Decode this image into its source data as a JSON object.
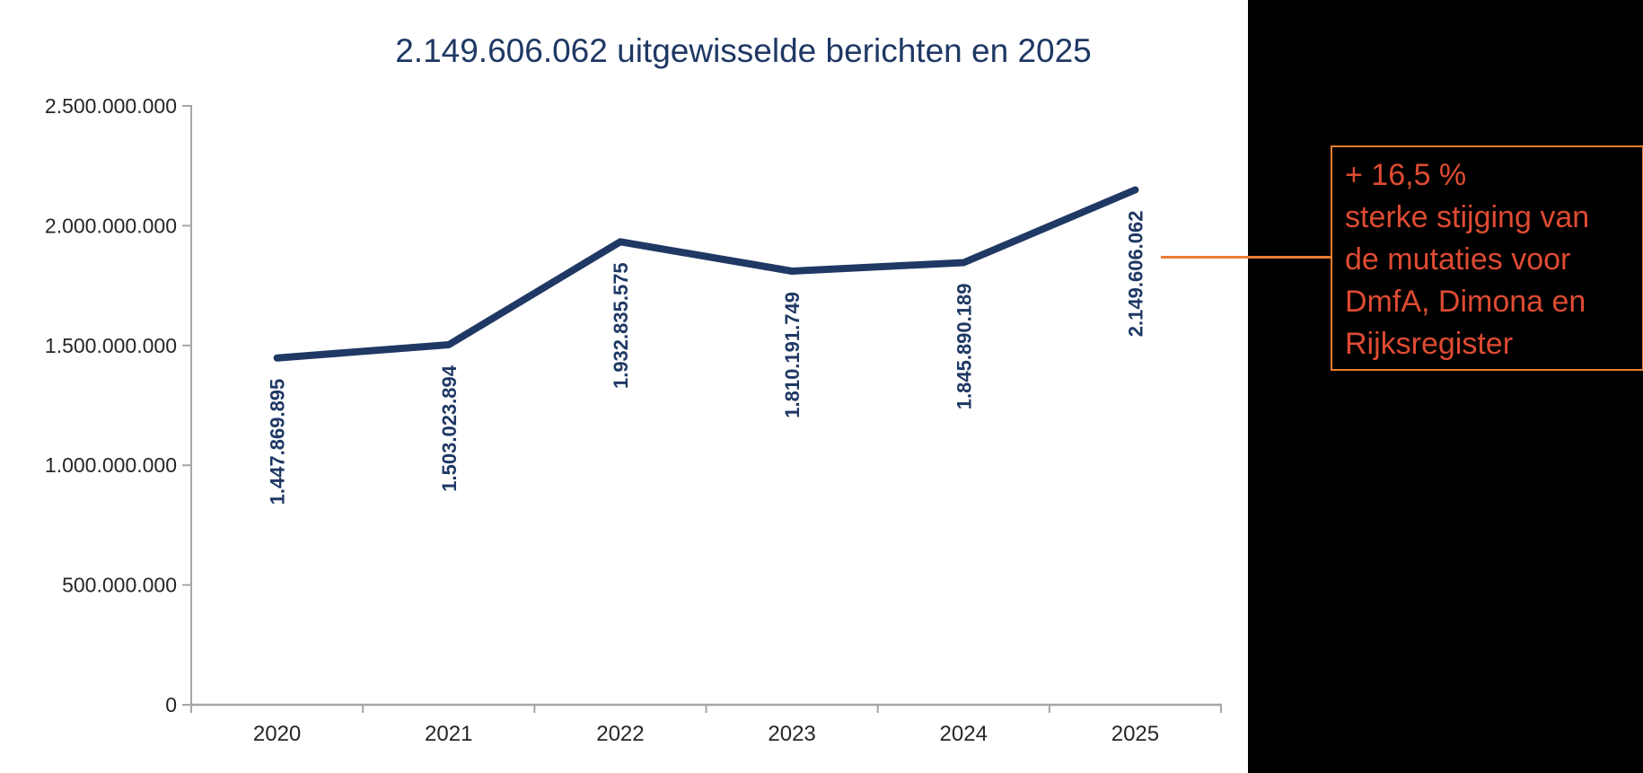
{
  "chart_data": {
    "type": "line",
    "title": "2.149.606.062 uitgewisselde berichten en 2025",
    "categories": [
      "2020",
      "2021",
      "2022",
      "2023",
      "2024",
      "2025"
    ],
    "values": [
      1447869895,
      1503023894,
      1932835575,
      1810191749,
      1845890189,
      2149606062
    ],
    "data_labels": [
      "1.447.869.895",
      "1.503.023.894",
      "1.932.835.575",
      "1.810.191.749",
      "1.845.890.189",
      "2.149.606.062"
    ],
    "xlabel": "",
    "ylabel": "",
    "ylim": [
      0,
      2500000000
    ],
    "y_ticks": [
      0,
      500000000,
      1000000000,
      1500000000,
      2000000000,
      2500000000
    ],
    "y_tick_labels": [
      "0",
      "500.000.000",
      "1.000.000.000",
      "1.500.000.000",
      "2.000.000.000",
      "2.500.000.000"
    ],
    "grid": false,
    "legend": "none",
    "series_name": "uitgewisselde berichten"
  },
  "callout": {
    "lines": [
      "+ 16,5 %",
      "sterke stijging van",
      "de mutaties voor",
      "DmfA, Dimona en",
      "Rijksregister"
    ]
  },
  "colors": {
    "line_navy": "#1f3864",
    "title_navy": "#1f3864",
    "data_label_navy": "#1f3864",
    "axis_grey": "#a6a6a6",
    "tick_text": "#262626",
    "panel_black": "#000000",
    "callout_border_orange": "#ed7d31",
    "connector_orange": "#ed7d31",
    "callout_text_red": "#de4b32"
  }
}
